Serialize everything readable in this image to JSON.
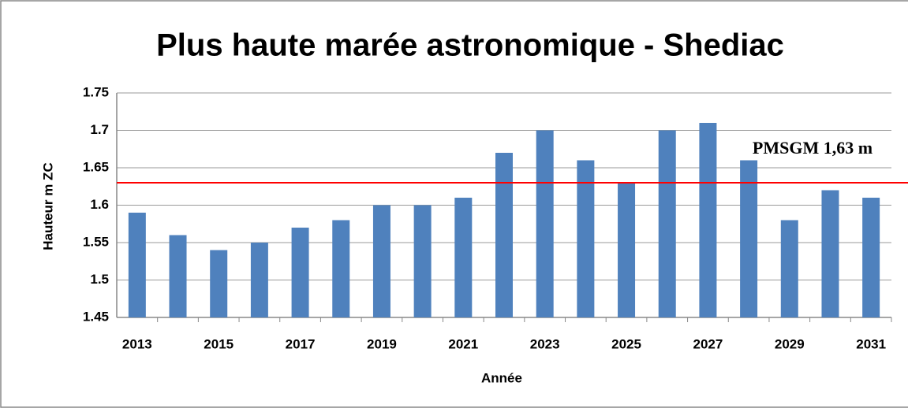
{
  "chart_data": {
    "type": "bar",
    "title": "Plus haute marée astronomique  - Shediac",
    "x_label": "Année",
    "y_label": "Hauteur m ZC",
    "categories": [
      "2013",
      null,
      "2015",
      null,
      "2017",
      null,
      "2019",
      null,
      "2021",
      null,
      "2023",
      null,
      "2025",
      null,
      "2027",
      null,
      "2029",
      null,
      "2031"
    ],
    "values": [
      1.59,
      1.56,
      1.54,
      1.55,
      1.57,
      1.58,
      1.6,
      1.6,
      1.61,
      1.67,
      1.7,
      1.66,
      1.63,
      1.7,
      1.71,
      1.66,
      1.58,
      1.62,
      1.61
    ],
    "color": "#4f81bd",
    "ylim": [
      1.45,
      1.75
    ],
    "yticks": [
      1.45,
      1.5,
      1.55,
      1.6,
      1.65,
      1.7,
      1.75
    ],
    "grid": true,
    "reference_line": {
      "value": 1.63,
      "label": "PMSGM 1,63 m",
      "color": "#ff0000"
    }
  }
}
